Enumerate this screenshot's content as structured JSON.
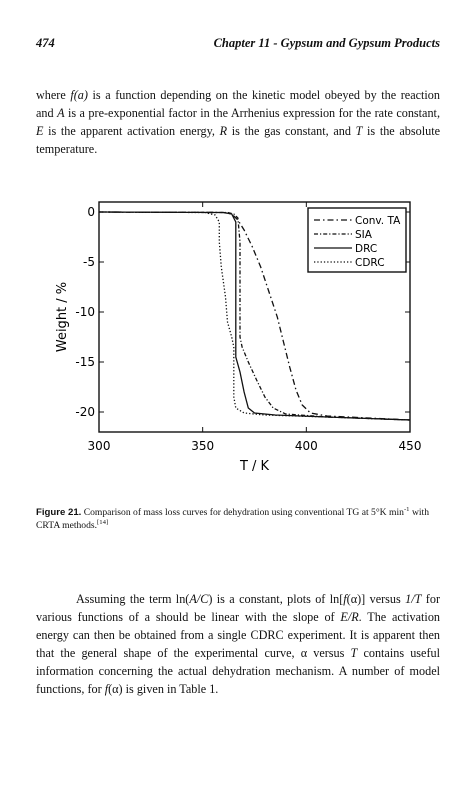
{
  "header": {
    "page_number": "474",
    "chapter_title": "Chapter 11 - Gypsum and Gypsum Products"
  },
  "paragraph1": {
    "s1": "where ",
    "s2": "f(a)",
    "s3": " is a function depending on the kinetic model obeyed by the reaction and ",
    "s4": "A",
    "s5": " is a pre-exponential factor in the Arrhenius expression for the rate constant, ",
    "s6": "E",
    "s7": " is the apparent activation energy, ",
    "s8": "R",
    "s9": " is the gas constant, and ",
    "s10": "T",
    "s11": " is the absolute temperature."
  },
  "caption": {
    "label": "Figure 21.",
    "text1": " Comparison of mass loss curves for dehydration using conventional TG at 5°K min",
    "sup1": "-1",
    "text2": " with CRTA methods.",
    "sup2": "[14]"
  },
  "paragraph2": {
    "s1": "Assuming the term ln(",
    "s2": "A/C",
    "s3": ") is a constant, plots of ln[",
    "s4": "f",
    "s5": "(α)] versus ",
    "s6": "1/T",
    "s7": " for various functions of a should be linear with the slope of ",
    "s8": "E/R",
    "s9": ". The activation energy can then be obtained from a single CDRC experiment. It is apparent then that the general shape of the experimental curve, α versus ",
    "s10": "T",
    "s11": " contains useful information concerning the actual dehydration mechanism. A number of model functions, for ",
    "s12": "f",
    "s13": "(α) is given in Table 1."
  },
  "chart_data": {
    "type": "line",
    "title": "",
    "xlabel": "T / K",
    "ylabel": "Weight / %",
    "xlim": [
      300,
      450
    ],
    "ylim": [
      -22,
      1
    ],
    "x_ticks": [
      "300",
      "350",
      "400",
      "450"
    ],
    "y_ticks": [
      "0",
      "-5",
      "-10",
      "-15",
      "-20"
    ],
    "legend_position": "top-right",
    "series": [
      {
        "name": "Conv. TA",
        "style": "dash-dot",
        "points": [
          [
            300,
            0
          ],
          [
            360,
            -0.05
          ],
          [
            364,
            -0.2
          ],
          [
            367,
            -0.8
          ],
          [
            370,
            -1.8
          ],
          [
            374,
            -3.5
          ],
          [
            378,
            -5.5
          ],
          [
            382,
            -8
          ],
          [
            386,
            -10.5
          ],
          [
            389,
            -13
          ],
          [
            392,
            -15.5
          ],
          [
            395,
            -17.8
          ],
          [
            398,
            -19.3
          ],
          [
            402,
            -20.1
          ],
          [
            410,
            -20.4
          ],
          [
            430,
            -20.6
          ],
          [
            450,
            -20.8
          ]
        ]
      },
      {
        "name": "SIA",
        "style": "dotted-dash",
        "points": [
          [
            300,
            0
          ],
          [
            362,
            -0.05
          ],
          [
            365,
            -0.2
          ],
          [
            367,
            -0.6
          ],
          [
            368,
            -3
          ],
          [
            368,
            -6
          ],
          [
            368,
            -9
          ],
          [
            368,
            -12.5
          ],
          [
            369,
            -13.5
          ],
          [
            372,
            -15
          ],
          [
            376,
            -16.8
          ],
          [
            380,
            -18.5
          ],
          [
            384,
            -19.6
          ],
          [
            390,
            -20.2
          ],
          [
            410,
            -20.5
          ],
          [
            450,
            -20.8
          ]
        ]
      },
      {
        "name": "DRC",
        "style": "solid",
        "points": [
          [
            300,
            0
          ],
          [
            360,
            -0.05
          ],
          [
            364,
            -0.2
          ],
          [
            366,
            -1
          ],
          [
            366,
            -4
          ],
          [
            366,
            -8
          ],
          [
            366,
            -12
          ],
          [
            366,
            -14.5
          ],
          [
            368,
            -16
          ],
          [
            370,
            -18
          ],
          [
            372,
            -19.6
          ],
          [
            375,
            -20.1
          ],
          [
            385,
            -20.3
          ],
          [
            410,
            -20.5
          ],
          [
            450,
            -20.8
          ]
        ]
      },
      {
        "name": "CDRC",
        "style": "dotted",
        "points": [
          [
            300,
            0
          ],
          [
            351,
            -0.05
          ],
          [
            356,
            -0.3
          ],
          [
            358,
            -1
          ],
          [
            358,
            -3
          ],
          [
            359,
            -5.5
          ],
          [
            361,
            -8.5
          ],
          [
            362,
            -11
          ],
          [
            364,
            -12.5
          ],
          [
            365,
            -13.5
          ],
          [
            365,
            -16
          ],
          [
            365,
            -18.5
          ],
          [
            366,
            -19.6
          ],
          [
            370,
            -20.1
          ],
          [
            380,
            -20.3
          ],
          [
            410,
            -20.5
          ],
          [
            450,
            -20.8
          ]
        ]
      }
    ]
  }
}
